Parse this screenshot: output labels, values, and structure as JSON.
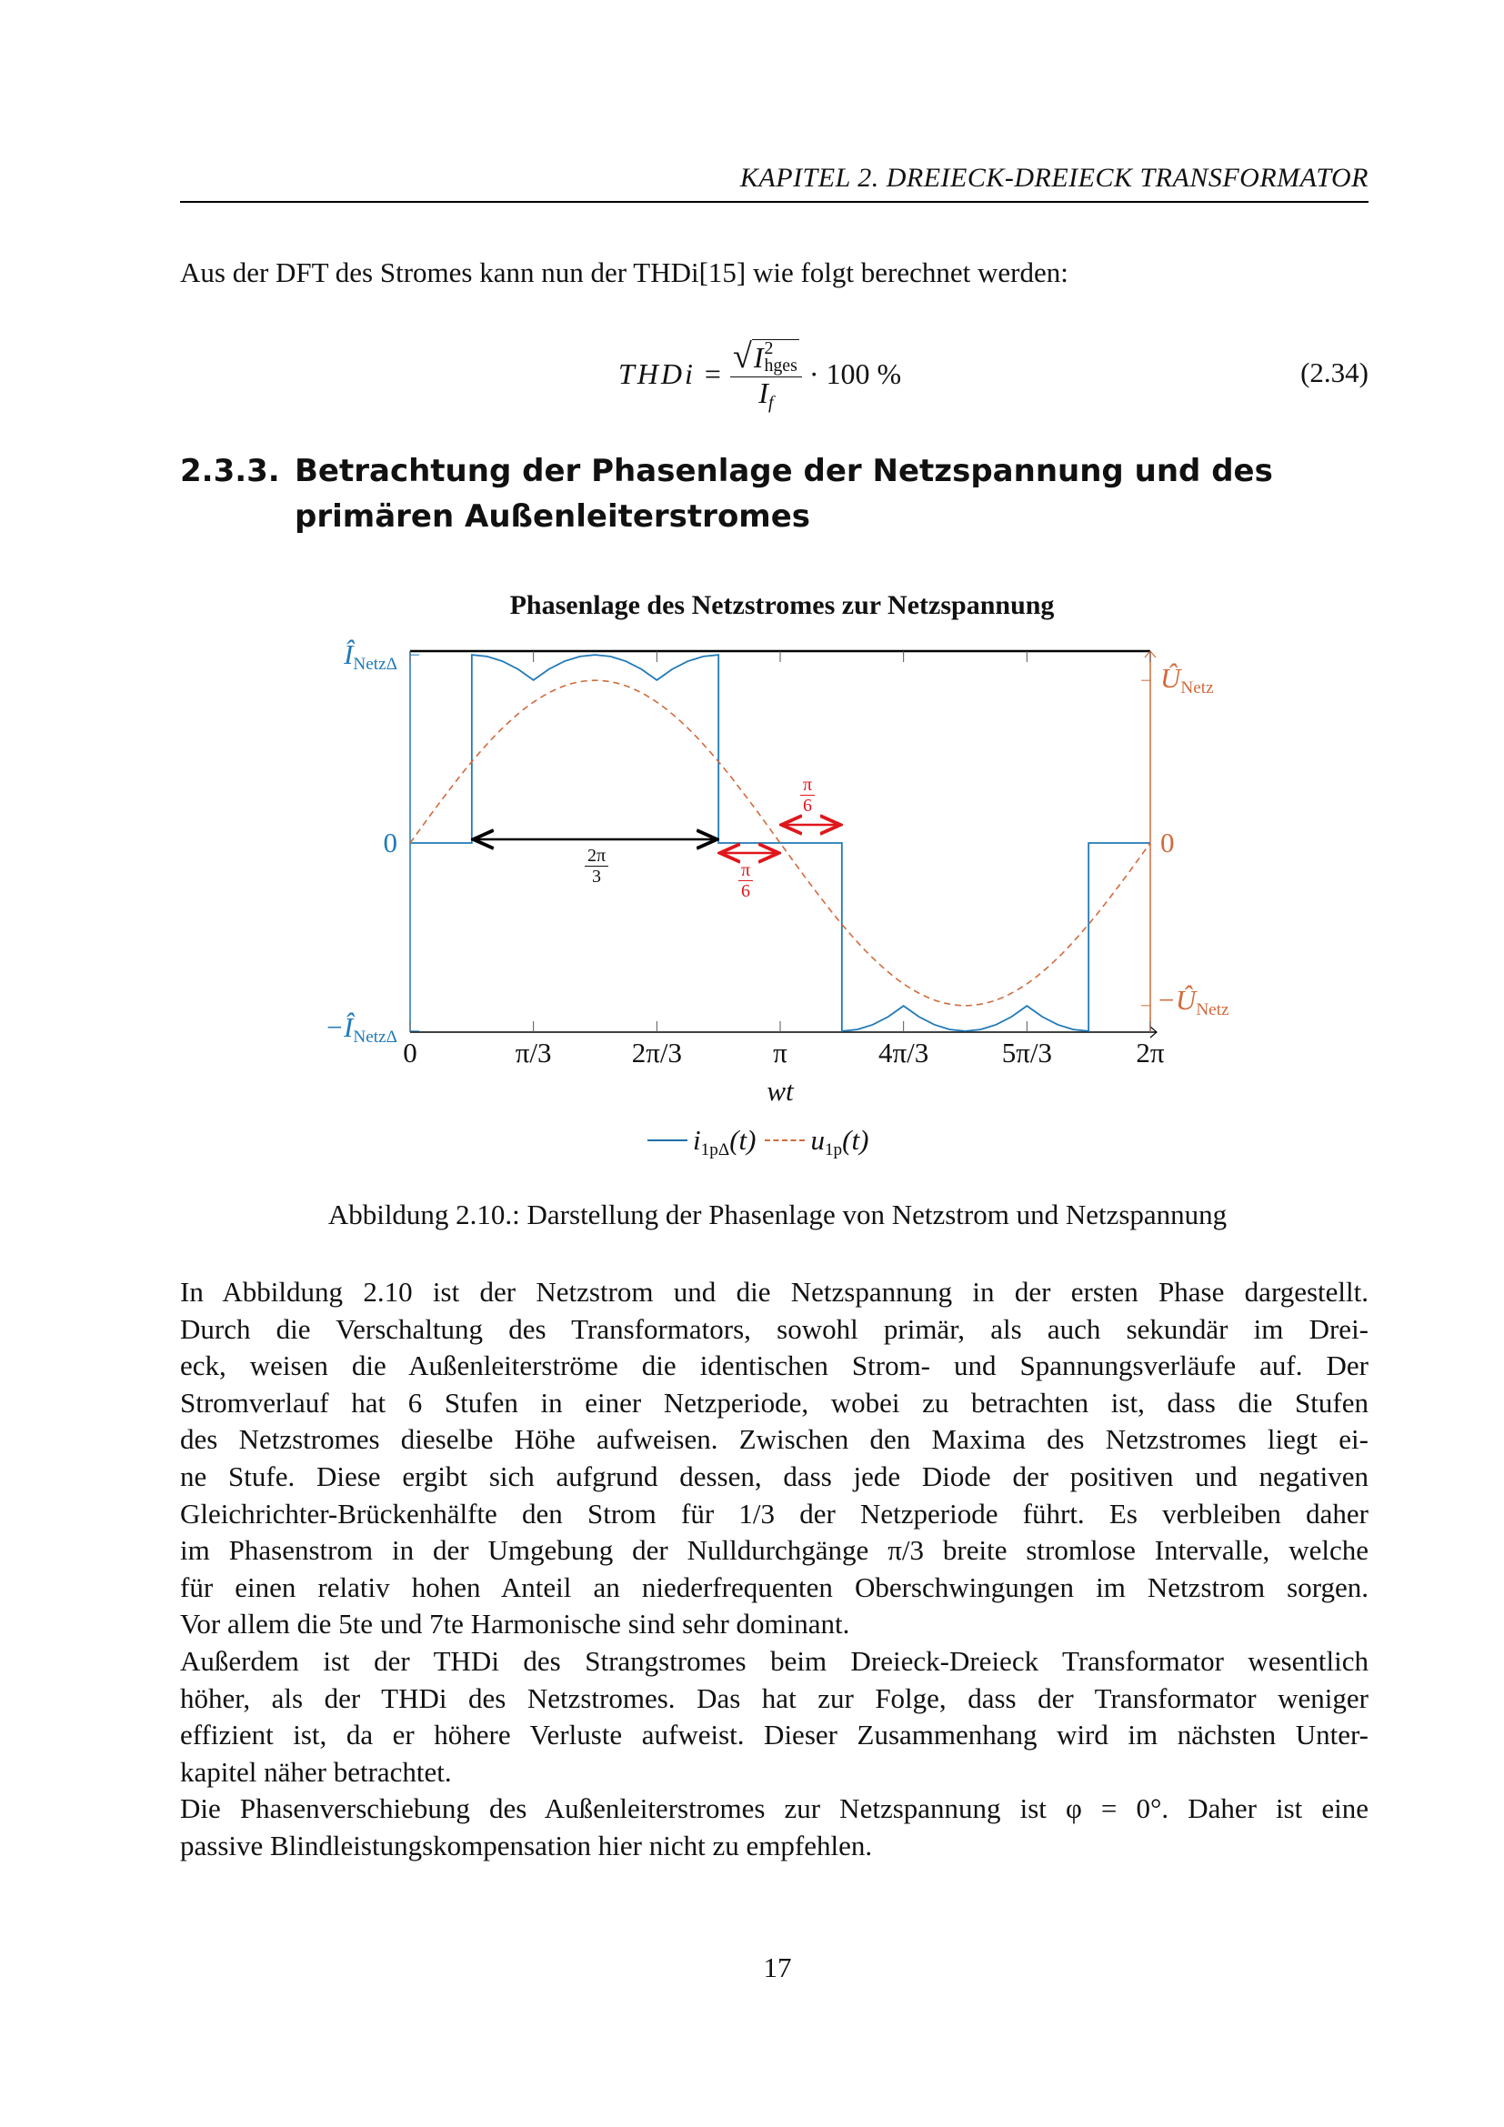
{
  "header": {
    "running_title": "KAPITEL 2.  DREIECK-DREIECK TRANSFORMATOR"
  },
  "intro_sentence": "Aus der DFT des Stromes kann nun der THDi[15] wie folgt berechnet werden:",
  "equation": {
    "lhs": "THDi",
    "equals": "=",
    "numerator_var": "I",
    "numerator_sup": "2",
    "numerator_sub": "hges",
    "denominator_var": "I",
    "denominator_sub": "f",
    "factor": "· 100 %",
    "number": "(2.34)"
  },
  "section": {
    "number": "2.3.3.",
    "title_line1": "Betrachtung der Phasenlage der Netzspannung und des",
    "title_line2": "primären Außenleiterstromes"
  },
  "figure": {
    "caption": "Abbildung 2.10.: Darstellung der Phasenlage von Netzstrom und Netzspannung"
  },
  "chart_data": {
    "type": "line",
    "title": "Phasenlage des Netzstromes zur Netzspannung",
    "xlabel": "wt",
    "x_unit": "π",
    "xlim": [
      0,
      2
    ],
    "xticks": [
      0,
      0.3333,
      0.6667,
      1,
      1.3333,
      1.6667,
      2
    ],
    "xtick_labels": [
      "0",
      "π/3",
      "2π/3",
      "π",
      "4π/3",
      "5π/3",
      "2π"
    ],
    "left_axis": {
      "ylim": [
        -1.02,
        1.02
      ],
      "tick_values": [
        1,
        0,
        -1
      ],
      "tick_labels": {
        "top": "Î",
        "top_sub": "NetzΔ",
        "zero": "0",
        "bottom": "−Î",
        "bottom_sub": "NetzΔ"
      },
      "color": "#1f7ab8"
    },
    "right_axis": {
      "ylim": [
        -1.18,
        1.18
      ],
      "tick_values": [
        1,
        0,
        -1
      ],
      "tick_labels": {
        "top": "Û",
        "top_sub": "Netz",
        "zero": "0",
        "bottom": "−Û",
        "bottom_sub": "Netz"
      },
      "color": "#d26a3c"
    },
    "grid": false,
    "legend_placement": "bottom",
    "series": [
      {
        "name": "i1pΔ(t)",
        "legend_var": "i",
        "legend_sub": "1pΔ",
        "legend_arg": "(t)",
        "axis": "left",
        "color": "#1f7ab8",
        "style": "solid",
        "points": [
          [
            0,
            0
          ],
          [
            0.16667,
            0
          ],
          [
            0.16667,
            1
          ],
          [
            0.20833,
            0.9914
          ],
          [
            0.25,
            0.9659
          ],
          [
            0.29167,
            0.9239
          ],
          [
            0.33333,
            0.866
          ],
          [
            0.375,
            0.9239
          ],
          [
            0.41667,
            0.9659
          ],
          [
            0.45833,
            0.9914
          ],
          [
            0.5,
            1
          ],
          [
            0.54167,
            0.9914
          ],
          [
            0.58333,
            0.9659
          ],
          [
            0.625,
            0.9239
          ],
          [
            0.66667,
            0.866
          ],
          [
            0.70833,
            0.9239
          ],
          [
            0.75,
            0.9659
          ],
          [
            0.79167,
            0.9914
          ],
          [
            0.83333,
            1
          ],
          [
            0.83333,
            0
          ],
          [
            1.16667,
            0
          ],
          [
            1.16667,
            -1
          ],
          [
            1.20833,
            -0.9914
          ],
          [
            1.25,
            -0.9659
          ],
          [
            1.29167,
            -0.9239
          ],
          [
            1.33333,
            -0.866
          ],
          [
            1.375,
            -0.9239
          ],
          [
            1.41667,
            -0.9659
          ],
          [
            1.45833,
            -0.9914
          ],
          [
            1.5,
            -1
          ],
          [
            1.54167,
            -0.9914
          ],
          [
            1.58333,
            -0.9659
          ],
          [
            1.625,
            -0.9239
          ],
          [
            1.66667,
            -0.866
          ],
          [
            1.70833,
            -0.9239
          ],
          [
            1.75,
            -0.9659
          ],
          [
            1.79167,
            -0.9914
          ],
          [
            1.83333,
            -1
          ],
          [
            1.83333,
            0
          ],
          [
            2,
            0
          ]
        ]
      },
      {
        "name": "u1p(t)",
        "legend_var": "u",
        "legend_sub": "1p",
        "legend_arg": "(t)",
        "axis": "right",
        "color": "#d26a3c",
        "style": "dashed",
        "points": [
          [
            0,
            0
          ],
          [
            0.08333,
            0.2588
          ],
          [
            0.16667,
            0.5
          ],
          [
            0.25,
            0.7071
          ],
          [
            0.33333,
            0.866
          ],
          [
            0.41667,
            0.9659
          ],
          [
            0.5,
            1
          ],
          [
            0.58333,
            0.9659
          ],
          [
            0.66667,
            0.866
          ],
          [
            0.75,
            0.7071
          ],
          [
            0.83333,
            0.5
          ],
          [
            0.91667,
            0.2588
          ],
          [
            1,
            0
          ],
          [
            1.08333,
            -0.2588
          ],
          [
            1.16667,
            -0.5
          ],
          [
            1.25,
            -0.7071
          ],
          [
            1.33333,
            -0.866
          ],
          [
            1.41667,
            -0.9659
          ],
          [
            1.5,
            -1
          ],
          [
            1.58333,
            -0.9659
          ],
          [
            1.66667,
            -0.866
          ],
          [
            1.75,
            -0.7071
          ],
          [
            1.83333,
            -0.5
          ],
          [
            1.91667,
            -0.2588
          ],
          [
            2,
            0
          ]
        ]
      }
    ],
    "annotations": [
      {
        "label_num": "2π",
        "label_den": "3",
        "from": 0.16667,
        "to": 0.83333,
        "color": "#000000"
      },
      {
        "label_num": "π",
        "label_den": "6",
        "from": 0.83333,
        "to": 1,
        "color": "#e0161b"
      },
      {
        "label_num": "π",
        "label_den": "6",
        "from": 1,
        "to": 1.16667,
        "color": "#e0161b"
      }
    ]
  },
  "body": {
    "lines": [
      {
        "text": "In Abbildung 2.10 ist der Netzstrom und die Netzspannung in der ersten Phase dargestellt.",
        "last": false
      },
      {
        "text": "Durch die Verschaltung des Transformators, sowohl primär, als auch sekundär im Drei-",
        "last": false
      },
      {
        "text": "eck, weisen die Außenleiterströme die identischen Strom- und Spannungsverläufe auf. Der",
        "last": false
      },
      {
        "text": "Stromverlauf hat 6 Stufen in einer Netzperiode, wobei zu betrachten ist, dass die Stufen",
        "last": false
      },
      {
        "text": "des Netzstromes dieselbe Höhe aufweisen. Zwischen den Maxima des Netzstromes liegt ei-",
        "last": false
      },
      {
        "text": "ne Stufe. Diese ergibt sich aufgrund dessen, dass jede Diode der positiven und negativen",
        "last": false
      },
      {
        "text": "Gleichrichter-Brückenhälfte den Strom für 1/3 der Netzperiode führt. Es verbleiben daher",
        "last": false
      },
      {
        "text": "im Phasenstrom in der Umgebung der Nulldurchgänge π/3 breite stromlose Intervalle, welche",
        "last": false
      },
      {
        "text": "für einen relativ hohen Anteil an niederfrequenten Oberschwingungen im Netzstrom sorgen.",
        "last": false
      },
      {
        "text": "Vor allem die 5te und 7te Harmonische sind sehr dominant.",
        "last": true
      },
      {
        "text": "Außerdem ist der THDi des Strangstromes beim Dreieck-Dreieck Transformator wesentlich",
        "last": false
      },
      {
        "text": "höher, als der THDi des Netzstromes. Das hat zur Folge, dass der Transformator weniger",
        "last": false
      },
      {
        "text": "effizient ist, da er höhere Verluste aufweist. Dieser Zusammenhang wird im nächsten Unter-",
        "last": false
      },
      {
        "text": "kapitel näher betrachtet.",
        "last": true
      },
      {
        "text": "Die Phasenverschiebung des Außenleiterstromes zur Netzspannung ist φ = 0°. Daher ist eine",
        "last": false
      },
      {
        "text": "passive Blindleistungskompensation hier nicht zu empfehlen.",
        "last": true
      }
    ]
  },
  "page_number": "17"
}
